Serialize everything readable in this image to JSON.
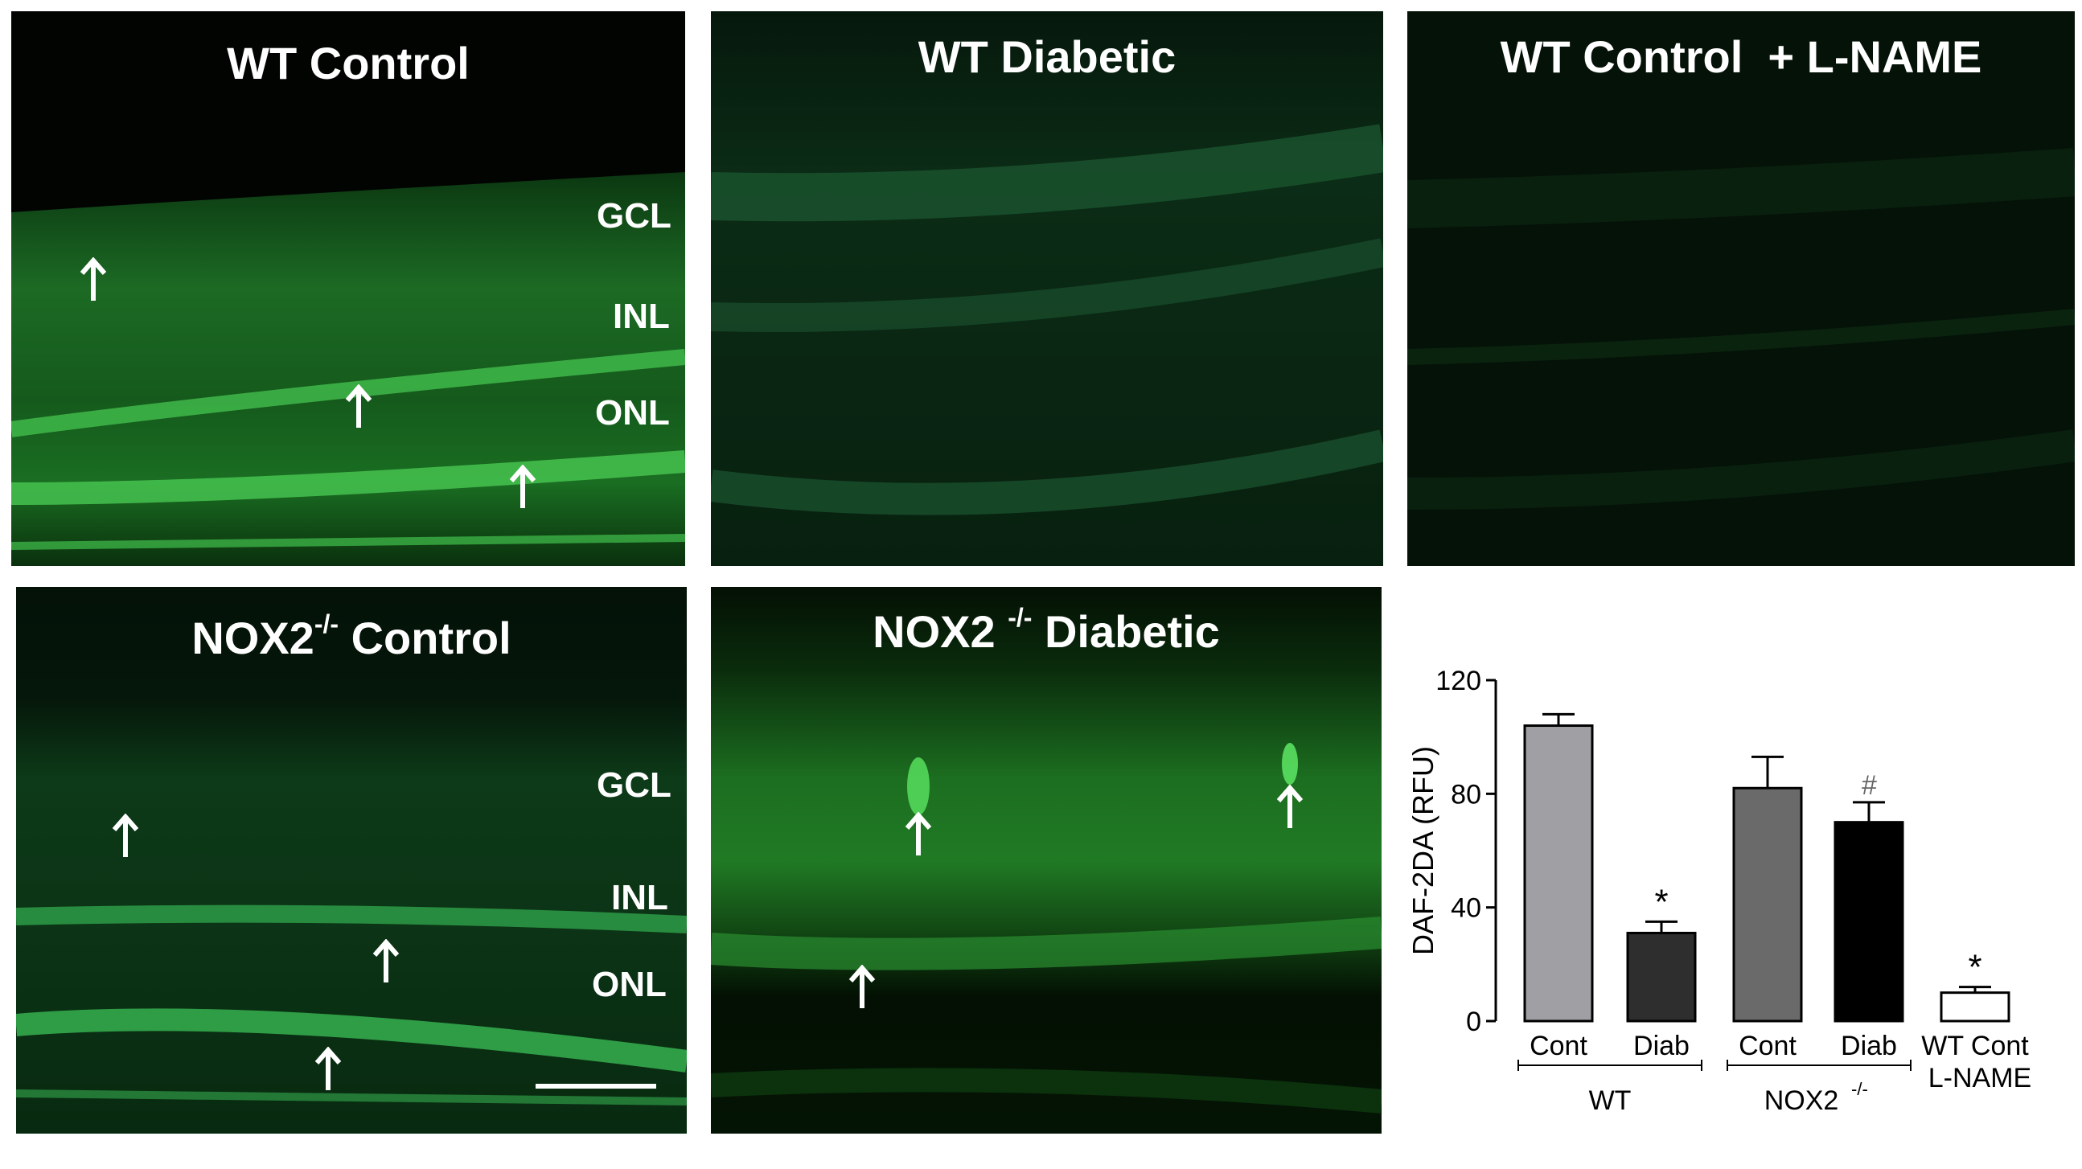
{
  "panels": {
    "wt_control": {
      "title": "WT Control",
      "layers": [
        "GCL",
        "INL",
        "ONL"
      ]
    },
    "wt_diabetic": {
      "title": "WT Diabetic"
    },
    "wt_lname": {
      "title": "WT Control  + L-NAME"
    },
    "nox2_control": {
      "title_prefix": "NOX2",
      "title_sup": "-/-",
      "title_suffix": " Control",
      "layers": [
        "GCL",
        "INL",
        "ONL"
      ]
    },
    "nox2_diabetic": {
      "title_prefix": "NOX2 ",
      "title_sup": "-/-",
      "title_suffix": " Diabetic"
    }
  },
  "colors": {
    "fluorescence": "#33c040",
    "bar_wt_cont": "#a0a0a4",
    "bar_wt_diab": "#2e2e2e",
    "bar_nox_cont": "#6a6a6a",
    "bar_nox_diab": "#000000",
    "bar_lname": "#ffffff"
  },
  "chart_data": {
    "type": "bar",
    "ylabel": "DAF-2DA (RFU)",
    "ylim": [
      0,
      120
    ],
    "yticks": [
      "0",
      "40",
      "80",
      "120"
    ],
    "categories": [
      "Cont",
      "Diab",
      "Cont",
      "Diab",
      "WT Cont"
    ],
    "extra_label": "L-NAME",
    "values": [
      104,
      31,
      82,
      70,
      10
    ],
    "errors": [
      4,
      4,
      11,
      7,
      2
    ],
    "annotations": [
      "",
      "*",
      "",
      "#",
      "*"
    ],
    "groups": [
      "WT",
      "NOX2",
      "-/-"
    ]
  }
}
